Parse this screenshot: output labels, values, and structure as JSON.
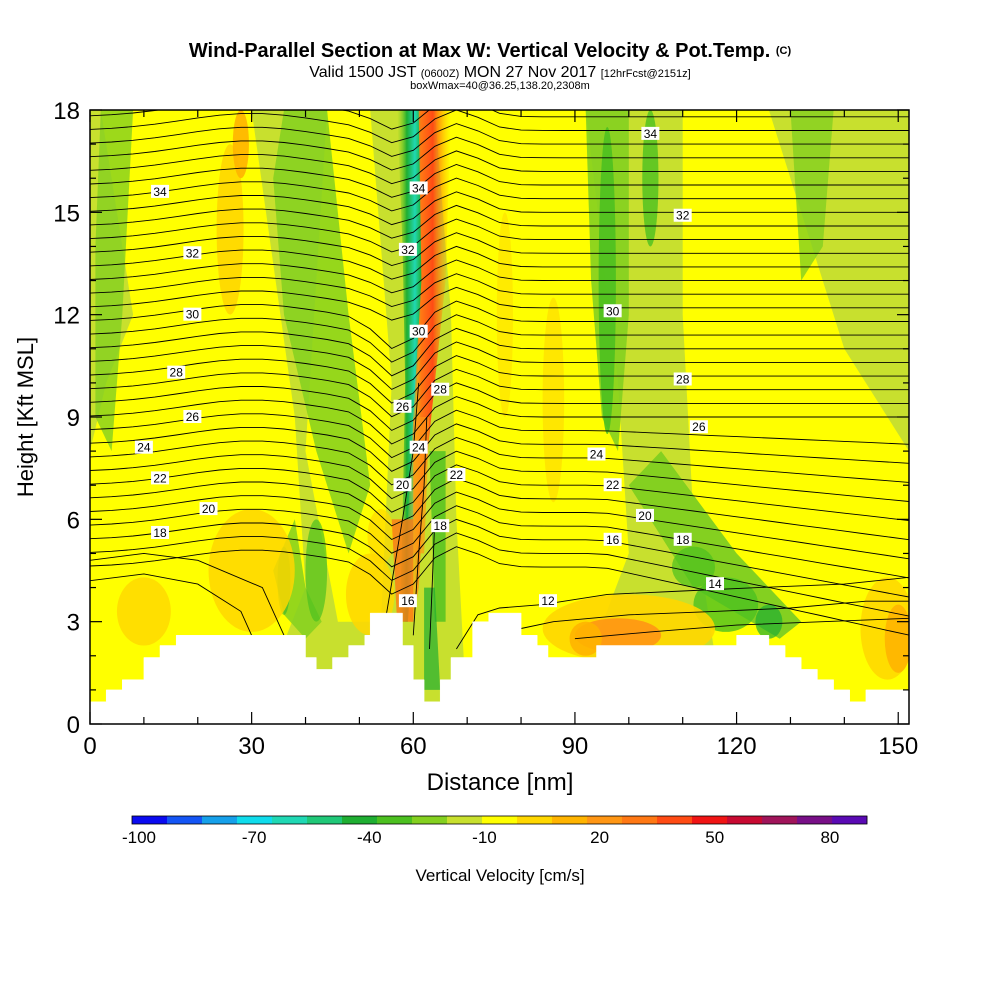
{
  "chart_data": {
    "type": "heatmap",
    "title": "Wind-Parallel Section at Max W: Vertical Velocity & Pot.Temp.",
    "title_mark": "(C)",
    "subtitle_parts": [
      "Valid 1500 JST",
      "(0600Z)",
      "MON 27 Nov 2017",
      "[12hrFcst@2151z]"
    ],
    "subtitle2": "boxWmax=40@36.25,138.20,2308m",
    "xlabel": "Distance [nm]",
    "ylabel": "Height [Kft MSL]",
    "xlim": [
      0,
      152
    ],
    "ylim": [
      0,
      18
    ],
    "x_ticks": [
      0,
      30,
      60,
      90,
      120,
      150
    ],
    "y_ticks": [
      0,
      3,
      6,
      9,
      12,
      15,
      18
    ],
    "grid": false,
    "colorbar": {
      "label": "Vertical Velocity [cm/s]",
      "tick_labels": [
        "-100",
        "-70",
        "-40",
        "-10",
        "20",
        "50",
        "80"
      ],
      "colors": [
        "#0a0af0",
        "#1455f5",
        "#16a0ea",
        "#10dcec",
        "#20d8b4",
        "#20c878",
        "#1fae32",
        "#4cc020",
        "#84d020",
        "#c8e02e",
        "#ffff00",
        "#ffd700",
        "#ffb400",
        "#ff9614",
        "#ff7814",
        "#ff4b14",
        "#f01414",
        "#c80a32",
        "#a0145a",
        "#780f87",
        "#5a0ab4"
      ]
    },
    "terrain_top_kft": [
      [
        0,
        0.65
      ],
      [
        3,
        0.65
      ],
      [
        3,
        1
      ],
      [
        6,
        1
      ],
      [
        6,
        1.3
      ],
      [
        10,
        1.3
      ],
      [
        10,
        1.95
      ],
      [
        13,
        1.95
      ],
      [
        13,
        2.3
      ],
      [
        16,
        2.3
      ],
      [
        16,
        2.6
      ],
      [
        40,
        2.6
      ],
      [
        40,
        1.95
      ],
      [
        42,
        1.95
      ],
      [
        42,
        1.6
      ],
      [
        45,
        1.6
      ],
      [
        45,
        1.95
      ],
      [
        48,
        1.95
      ],
      [
        48,
        2.3
      ],
      [
        51,
        2.3
      ],
      [
        51,
        2.6
      ],
      [
        52,
        2.6
      ],
      [
        52,
        3.25
      ],
      [
        58,
        3.25
      ],
      [
        58,
        2.3
      ],
      [
        60,
        2.3
      ],
      [
        60,
        1.3
      ],
      [
        62,
        1.3
      ],
      [
        62,
        0.65
      ],
      [
        65,
        0.65
      ],
      [
        65,
        1.3
      ],
      [
        67,
        1.3
      ],
      [
        67,
        1.95
      ],
      [
        71,
        1.95
      ],
      [
        71,
        3
      ],
      [
        74,
        3
      ],
      [
        74,
        3.25
      ],
      [
        80,
        3.25
      ],
      [
        80,
        2.6
      ],
      [
        83,
        2.6
      ],
      [
        83,
        2.3
      ],
      [
        85,
        2.3
      ],
      [
        85,
        1.95
      ],
      [
        94,
        1.95
      ],
      [
        94,
        2.3
      ],
      [
        120,
        2.3
      ],
      [
        120,
        2.6
      ],
      [
        126,
        2.6
      ],
      [
        126,
        2.3
      ],
      [
        129,
        2.3
      ],
      [
        129,
        1.95
      ],
      [
        132,
        1.95
      ],
      [
        132,
        1.6
      ],
      [
        135,
        1.6
      ],
      [
        135,
        1.3
      ],
      [
        138,
        1.3
      ],
      [
        138,
        1
      ],
      [
        141,
        1
      ],
      [
        141,
        0.65
      ],
      [
        144,
        0.65
      ],
      [
        144,
        1
      ],
      [
        152,
        1
      ]
    ],
    "theta_labels": [
      {
        "text": "34",
        "x": 13,
        "y": 15.6
      },
      {
        "text": "34",
        "x": 61,
        "y": 15.7
      },
      {
        "text": "34",
        "x": 104,
        "y": 17.3
      },
      {
        "text": "32",
        "x": 19,
        "y": 13.8
      },
      {
        "text": "32",
        "x": 59,
        "y": 13.9
      },
      {
        "text": "32",
        "x": 110,
        "y": 14.9
      },
      {
        "text": "30",
        "x": 19,
        "y": 12
      },
      {
        "text": "30",
        "x": 61,
        "y": 11.5
      },
      {
        "text": "30",
        "x": 97,
        "y": 12.1
      },
      {
        "text": "28",
        "x": 16,
        "y": 10.3
      },
      {
        "text": "28",
        "x": 65,
        "y": 9.8
      },
      {
        "text": "28",
        "x": 110,
        "y": 10.1
      },
      {
        "text": "26",
        "x": 19,
        "y": 9
      },
      {
        "text": "26",
        "x": 58,
        "y": 9.3
      },
      {
        "text": "26",
        "x": 113,
        "y": 8.7
      },
      {
        "text": "24",
        "x": 10,
        "y": 8.1
      },
      {
        "text": "24",
        "x": 61,
        "y": 8.1
      },
      {
        "text": "24",
        "x": 94,
        "y": 7.9
      },
      {
        "text": "22",
        "x": 13,
        "y": 7.2
      },
      {
        "text": "22",
        "x": 68,
        "y": 7.3
      },
      {
        "text": "22",
        "x": 97,
        "y": 7
      },
      {
        "text": "20",
        "x": 22,
        "y": 6.3
      },
      {
        "text": "20",
        "x": 58,
        "y": 7
      },
      {
        "text": "20",
        "x": 103,
        "y": 6.1
      },
      {
        "text": "18",
        "x": 13,
        "y": 5.6
      },
      {
        "text": "18",
        "x": 65,
        "y": 5.8
      },
      {
        "text": "18",
        "x": 110,
        "y": 5.4
      },
      {
        "text": "16",
        "x": 59,
        "y": 3.6
      },
      {
        "text": "16",
        "x": 97,
        "y": 5.4
      },
      {
        "text": "14",
        "x": 116,
        "y": 4.1
      },
      {
        "text": "12",
        "x": 85,
        "y": 3.6
      }
    ]
  }
}
